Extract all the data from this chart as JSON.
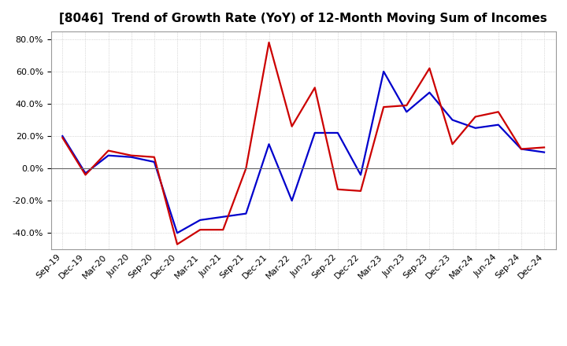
{
  "title": "[8046]  Trend of Growth Rate (YoY) of 12-Month Moving Sum of Incomes",
  "xlabel": "",
  "ylabel": "",
  "ylim": [
    -0.5,
    0.85
  ],
  "yticks": [
    -0.4,
    -0.2,
    0.0,
    0.2,
    0.4,
    0.6,
    0.8
  ],
  "background_color": "#ffffff",
  "plot_bg_color": "#ffffff",
  "grid_color": "#bbbbbb",
  "labels": [
    "Sep-19",
    "Dec-19",
    "Mar-20",
    "Jun-20",
    "Sep-20",
    "Dec-20",
    "Mar-21",
    "Jun-21",
    "Sep-21",
    "Dec-21",
    "Mar-22",
    "Jun-22",
    "Sep-22",
    "Dec-22",
    "Mar-23",
    "Jun-23",
    "Sep-23",
    "Dec-23",
    "Mar-24",
    "Jun-24",
    "Sep-24",
    "Dec-24"
  ],
  "ordinary_income": [
    0.2,
    -0.03,
    0.08,
    0.07,
    0.04,
    -0.4,
    -0.32,
    -0.3,
    -0.28,
    0.15,
    -0.2,
    0.22,
    0.22,
    -0.04,
    0.6,
    0.35,
    0.47,
    0.3,
    0.25,
    0.27,
    0.12,
    0.1
  ],
  "net_income": [
    0.19,
    -0.04,
    0.11,
    0.08,
    0.07,
    -0.47,
    -0.38,
    -0.38,
    0.0,
    0.78,
    0.26,
    0.5,
    -0.13,
    -0.14,
    0.38,
    0.39,
    0.62,
    0.15,
    0.32,
    0.35,
    0.12,
    0.13
  ],
  "ordinary_color": "#0000cc",
  "net_color": "#cc0000",
  "line_width": 1.6,
  "title_fontsize": 11,
  "tick_fontsize": 8,
  "legend_fontsize": 9
}
